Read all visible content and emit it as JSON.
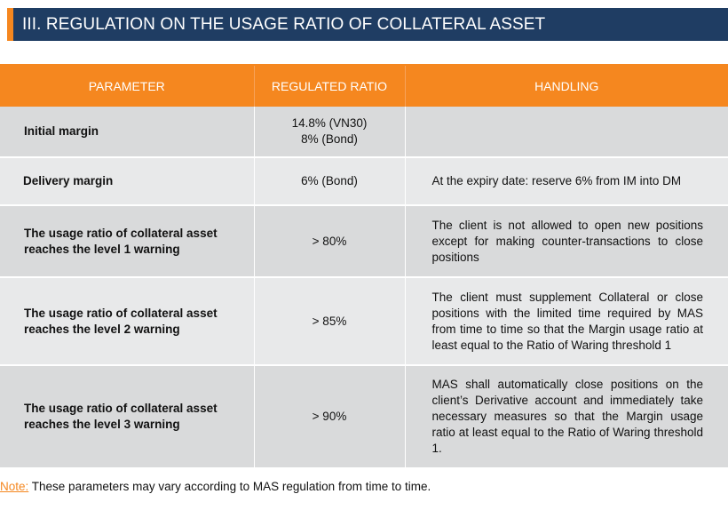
{
  "title": "III. REGULATION ON THE USAGE RATIO OF COLLATERAL ASSET",
  "colors": {
    "header_bg": "#1f3d63",
    "accent": "#f5871f",
    "row_dark": "#d9dadb",
    "row_light": "#e8e9ea"
  },
  "table": {
    "headers": [
      "PARAMETER",
      "REGULATED RATIO",
      "HANDLING"
    ],
    "rows": [
      {
        "parameter": "Initial margin",
        "ratio_lines": [
          "14.8% (VN30)",
          "8% (Bond)"
        ],
        "handling": ""
      },
      {
        "parameter": "Delivery margin",
        "ratio_lines": [
          "6% (Bond)"
        ],
        "handling": "At the expiry date: reserve 6% from IM into DM"
      },
      {
        "parameter": "The usage ratio of collateral asset reaches the level 1 warning",
        "ratio_lines": [
          "> 80%"
        ],
        "handling": "The client is not allowed to open new positions except for making counter-transactions to close positions"
      },
      {
        "parameter": "The usage ratio of collateral asset reaches the level 2 warning",
        "ratio_lines": [
          "> 85%"
        ],
        "handling": "The client must supplement Collateral or close positions with the limited time required by MAS from time to time so that the Margin usage ratio at least equal to the Ratio of Waring threshold 1"
      },
      {
        "parameter": "The usage ratio of collateral asset reaches the level 3 warning",
        "ratio_lines": [
          "> 90%"
        ],
        "handling": "MAS shall automatically close positions on the client’s Derivative account and immediately take necessary measures so that the Margin usage ratio at least equal to the Ratio of Waring threshold 1."
      }
    ]
  },
  "note": {
    "label": "Note:",
    "text": " These parameters may vary according to MAS regulation from time to time."
  }
}
